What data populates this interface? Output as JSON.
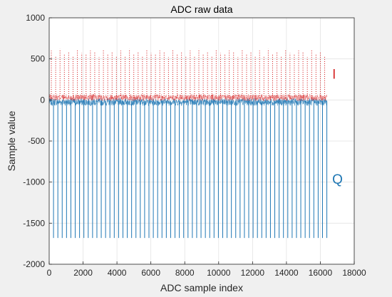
{
  "chart_data": {
    "type": "line",
    "title": "ADC raw data",
    "xlabel": "ADC sample index",
    "ylabel": "Sample value",
    "xlim": [
      0,
      18000
    ],
    "ylim": [
      -2000,
      1000
    ],
    "x_ticks": [
      0,
      2000,
      4000,
      6000,
      8000,
      10000,
      12000,
      14000,
      16000,
      18000
    ],
    "y_ticks": [
      -2000,
      -1500,
      -1000,
      -500,
      0,
      500,
      1000
    ],
    "grid": true,
    "legend": "none",
    "data_x_range": [
      1,
      16384
    ],
    "series": [
      {
        "key": "I",
        "color": "#d62728",
        "line_style": "dotted",
        "baseline": 20,
        "noise_band": [
          -30,
          50
        ],
        "spike_period": 256,
        "spike_peaks": [
          600,
          540,
          620,
          560,
          590,
          530,
          610,
          570,
          550,
          600,
          580,
          520,
          610,
          560,
          590,
          540
        ]
      },
      {
        "key": "Q",
        "color": "#1f77b4",
        "line_style": "solid",
        "baseline": -10,
        "noise_band": [
          -60,
          30
        ],
        "spike_period": 256,
        "spike_peak": -1680
      }
    ],
    "annotations": [
      {
        "text": "I",
        "x": 16700,
        "y": 320,
        "color": "#d62728"
      },
      {
        "text": "Q",
        "x": 16700,
        "y": -960,
        "color": "#1f77b4"
      }
    ]
  }
}
